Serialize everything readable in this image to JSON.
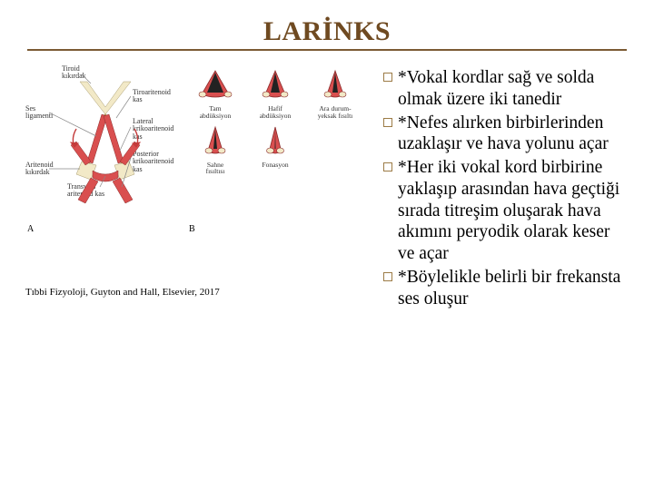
{
  "title": "LARİNKS",
  "title_color": "#6f4a21",
  "rule_color": "#7b5a33",
  "caption": "Tıbbi Fizyoloji, Guyton and Hall, Elsevier, 2017",
  "anatomy_labels": {
    "tiroid": "Tiroid\nkıkırdak",
    "ses_lig": "Ses\nligamenti",
    "aritenoid": "Aritenoid\nkıkırdak",
    "tiroaritenoid": "Tiroaritenoid\nkas",
    "lateral": "Lateral\nkrikoaritenoid\nkas",
    "transvers": "Transvers\naritenoid kas",
    "posterior": "Posterior\nkrikoaritenoid\nkas"
  },
  "panel_A": "A",
  "panel_B": "B",
  "states": [
    {
      "label": "Tam\nabdüksiyon",
      "opening": 18,
      "tilt": 0
    },
    {
      "label": "Hafif\nabdüksiyon",
      "opening": 10,
      "tilt": 0
    },
    {
      "label": "Ara durum-\nyeksak fısıltı",
      "opening": 6,
      "tilt": 0
    },
    {
      "label": "Sahne\nfısıltısı",
      "opening": 4,
      "tilt": 0
    },
    {
      "label": "Fonasyon",
      "opening": 1,
      "tilt": 0
    }
  ],
  "state_colors": {
    "cord": "#d94f4f",
    "cartilage": "#f2e9c7",
    "stroke": "#8a2a2a",
    "slit": "#333"
  },
  "bullets": [
    "*Vokal kordlar sağ ve solda olmak üzere iki tanedir",
    "*Nefes alırken birbirlerinden uzaklaşır ve hava yolunu açar",
    "*Her iki vokal kord birbirine yaklaşıp arasından hava geçtiği sırada titreşim oluşarak hava akımını peryodik olarak keser ve açar",
    "*Böylelikle belirli bir frekansta ses oluşur"
  ],
  "bullet_font_size": 19.5,
  "bullet_marker_border": "#9c7b46"
}
